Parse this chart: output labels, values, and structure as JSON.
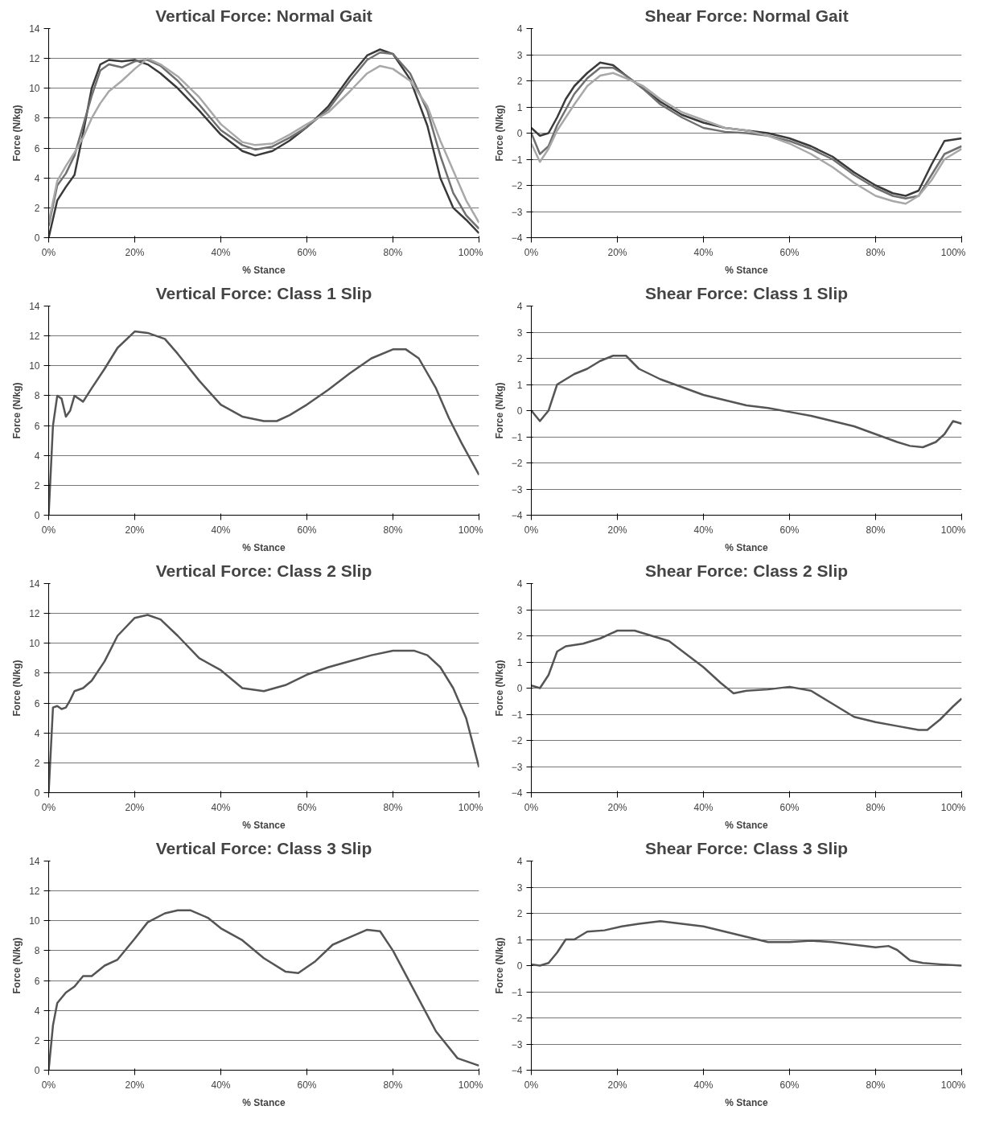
{
  "chart_data": [
    {
      "type": "line",
      "title": "Vertical Force: Normal Gait",
      "xlabel": "% Stance",
      "ylabel": "Force (N/kg)",
      "xlim": [
        0,
        100
      ],
      "xticks": [
        {
          "value": 0,
          "label": "0%"
        },
        {
          "value": 20,
          "label": "20%"
        },
        {
          "value": 40,
          "label": "40%"
        },
        {
          "value": 60,
          "label": "60%"
        },
        {
          "value": 80,
          "label": "80%"
        },
        {
          "value": 100,
          "label": "100%"
        }
      ],
      "ylim": [
        0,
        14
      ],
      "yticks": [
        0,
        2,
        4,
        6,
        8,
        10,
        12,
        14
      ],
      "grid": "y",
      "series": [
        {
          "color": "#3a3a3a",
          "x": [
            0,
            2,
            4,
            6,
            8,
            10,
            12,
            14,
            17,
            20,
            23,
            26,
            30,
            35,
            40,
            45,
            48,
            52,
            56,
            60,
            65,
            70,
            74,
            77,
            80,
            84,
            88,
            91,
            94,
            97,
            100
          ],
          "values": [
            0,
            2.5,
            3.4,
            4.2,
            7,
            10,
            11.6,
            11.9,
            11.8,
            11.9,
            11.6,
            11,
            10,
            8.5,
            6.9,
            5.8,
            5.5,
            5.8,
            6.5,
            7.4,
            8.8,
            10.8,
            12.2,
            12.6,
            12.3,
            10.6,
            7.5,
            4,
            2,
            1.2,
            0.3
          ]
        },
        {
          "color": "#707070",
          "x": [
            0,
            2,
            4,
            6,
            8,
            10,
            12,
            14,
            17,
            20,
            23,
            26,
            30,
            35,
            40,
            45,
            48,
            52,
            56,
            60,
            65,
            70,
            74,
            77,
            80,
            84,
            88,
            91,
            94,
            97,
            100
          ],
          "values": [
            0.8,
            3.5,
            4.3,
            5.5,
            7.5,
            9.5,
            11.2,
            11.6,
            11.4,
            11.8,
            11.9,
            11.5,
            10.5,
            8.9,
            7.2,
            6.2,
            5.9,
            6.1,
            6.7,
            7.4,
            8.6,
            10.5,
            11.9,
            12.4,
            12.3,
            11,
            8.5,
            5.5,
            3,
            1.5,
            0.6
          ]
        },
        {
          "color": "#a8a8a8",
          "x": [
            0,
            2,
            4,
            6,
            8,
            10,
            12,
            14,
            17,
            20,
            23,
            26,
            30,
            35,
            40,
            45,
            48,
            52,
            56,
            60,
            65,
            70,
            74,
            77,
            80,
            84,
            88,
            91,
            94,
            97,
            100
          ],
          "values": [
            1,
            3.8,
            4.8,
            5.7,
            6.7,
            8,
            9,
            9.8,
            10.5,
            11.3,
            12,
            11.6,
            10.8,
            9.4,
            7.6,
            6.4,
            6.2,
            6.3,
            6.9,
            7.6,
            8.4,
            9.8,
            11,
            11.5,
            11.3,
            10.5,
            8.8,
            6.5,
            4.5,
            2.5,
            1
          ]
        }
      ]
    },
    {
      "type": "line",
      "title": "Shear Force: Normal Gait",
      "xlabel": "% Stance",
      "ylabel": "Force (N/kg)",
      "xlim": [
        0,
        100
      ],
      "xticks": [
        {
          "value": 0,
          "label": "0%"
        },
        {
          "value": 20,
          "label": "20%"
        },
        {
          "value": 40,
          "label": "40%"
        },
        {
          "value": 60,
          "label": "60%"
        },
        {
          "value": 80,
          "label": "80%"
        },
        {
          "value": 100,
          "label": "100%"
        }
      ],
      "ylim": [
        -4,
        4
      ],
      "yticks": [
        -4,
        -3,
        -2,
        -1,
        0,
        1,
        2,
        3,
        4
      ],
      "grid": "y",
      "series": [
        {
          "color": "#3a3a3a",
          "x": [
            0,
            2,
            4,
            6,
            8,
            10,
            13,
            16,
            19,
            22,
            26,
            30,
            35,
            40,
            45,
            50,
            55,
            60,
            65,
            70,
            75,
            80,
            84,
            87,
            90,
            93,
            96,
            100
          ],
          "values": [
            0.2,
            -0.1,
            0,
            0.6,
            1.3,
            1.8,
            2.3,
            2.7,
            2.6,
            2.2,
            1.7,
            1.2,
            0.7,
            0.4,
            0.2,
            0.1,
            0,
            -0.2,
            -0.5,
            -0.9,
            -1.5,
            -2,
            -2.3,
            -2.4,
            -2.2,
            -1.2,
            -0.3,
            -0.2
          ]
        },
        {
          "color": "#707070",
          "x": [
            0,
            2,
            4,
            6,
            8,
            10,
            13,
            16,
            19,
            22,
            26,
            30,
            35,
            40,
            45,
            50,
            55,
            60,
            65,
            70,
            75,
            80,
            84,
            87,
            90,
            93,
            96,
            100
          ],
          "values": [
            0,
            -0.8,
            -0.5,
            0.3,
            0.9,
            1.5,
            2.1,
            2.5,
            2.5,
            2.2,
            1.7,
            1.1,
            0.6,
            0.2,
            0.05,
            0,
            -0.1,
            -0.3,
            -0.6,
            -1,
            -1.6,
            -2.1,
            -2.4,
            -2.5,
            -2.4,
            -1.6,
            -0.8,
            -0.5
          ]
        },
        {
          "color": "#a8a8a8",
          "x": [
            0,
            2,
            4,
            6,
            8,
            10,
            13,
            16,
            19,
            22,
            26,
            30,
            35,
            40,
            45,
            50,
            55,
            60,
            65,
            70,
            75,
            80,
            84,
            87,
            90,
            93,
            96,
            100
          ],
          "values": [
            -0.4,
            -1.1,
            -0.6,
            0.1,
            0.6,
            1.1,
            1.8,
            2.2,
            2.3,
            2.1,
            1.8,
            1.3,
            0.8,
            0.5,
            0.2,
            0.1,
            -0.1,
            -0.4,
            -0.8,
            -1.3,
            -1.9,
            -2.4,
            -2.6,
            -2.7,
            -2.4,
            -1.8,
            -1,
            -0.6
          ]
        }
      ]
    },
    {
      "type": "line",
      "title": "Vertical Force: Class 1 Slip",
      "xlabel": "% Stance",
      "ylabel": "Force (N/kg)",
      "xlim": [
        0,
        100
      ],
      "xticks": [
        {
          "value": 0,
          "label": "0%"
        },
        {
          "value": 20,
          "label": "20%"
        },
        {
          "value": 40,
          "label": "40%"
        },
        {
          "value": 60,
          "label": "60%"
        },
        {
          "value": 80,
          "label": "80%"
        },
        {
          "value": 100,
          "label": "100%"
        }
      ],
      "ylim": [
        0,
        14
      ],
      "yticks": [
        0,
        2,
        4,
        6,
        8,
        10,
        12,
        14
      ],
      "grid": "y",
      "series": [
        {
          "color": "#555555",
          "x": [
            0,
            1,
            2,
            3,
            4,
            5,
            6,
            8,
            10,
            13,
            16,
            20,
            23,
            27,
            30,
            35,
            40,
            45,
            50,
            53,
            56,
            60,
            65,
            70,
            75,
            80,
            83,
            86,
            90,
            93,
            96,
            100
          ],
          "values": [
            0,
            6,
            8,
            7.8,
            6.6,
            7,
            8,
            7.6,
            8.5,
            9.8,
            11.2,
            12.3,
            12.2,
            11.8,
            10.8,
            9,
            7.4,
            6.6,
            6.3,
            6.3,
            6.7,
            7.4,
            8.4,
            9.5,
            10.5,
            11.1,
            11.1,
            10.5,
            8.5,
            6.5,
            4.8,
            2.7
          ]
        }
      ]
    },
    {
      "type": "line",
      "title": "Shear Force: Class 1 Slip",
      "xlabel": "% Stance",
      "ylabel": "Force (N/kg)",
      "xlim": [
        0,
        100
      ],
      "xticks": [
        {
          "value": 0,
          "label": "0%"
        },
        {
          "value": 20,
          "label": "20%"
        },
        {
          "value": 40,
          "label": "40%"
        },
        {
          "value": 60,
          "label": "60%"
        },
        {
          "value": 80,
          "label": "80%"
        },
        {
          "value": 100,
          "label": "100%"
        }
      ],
      "ylim": [
        -4,
        4
      ],
      "yticks": [
        -4,
        -3,
        -2,
        -1,
        0,
        1,
        2,
        3,
        4
      ],
      "grid": "y",
      "series": [
        {
          "color": "#555555",
          "x": [
            0,
            2,
            4,
            6,
            8,
            10,
            13,
            16,
            19,
            22,
            25,
            30,
            35,
            40,
            45,
            50,
            55,
            60,
            65,
            70,
            75,
            80,
            85,
            88,
            91,
            94,
            96,
            98,
            100
          ],
          "values": [
            0,
            -0.4,
            0,
            1,
            1.2,
            1.4,
            1.6,
            1.9,
            2.1,
            2.1,
            1.6,
            1.2,
            0.9,
            0.6,
            0.4,
            0.2,
            0.1,
            -0.05,
            -0.2,
            -0.4,
            -0.6,
            -0.9,
            -1.2,
            -1.35,
            -1.4,
            -1.2,
            -0.9,
            -0.4,
            -0.5
          ]
        }
      ]
    },
    {
      "type": "line",
      "title": "Vertical Force: Class 2 Slip",
      "xlabel": "% Stance",
      "ylabel": "Force (N/kg)",
      "xlim": [
        0,
        100
      ],
      "xticks": [
        {
          "value": 0,
          "label": "0%"
        },
        {
          "value": 20,
          "label": "20%"
        },
        {
          "value": 40,
          "label": "40%"
        },
        {
          "value": 60,
          "label": "60%"
        },
        {
          "value": 80,
          "label": "80%"
        },
        {
          "value": 100,
          "label": "100%"
        }
      ],
      "ylim": [
        0,
        14
      ],
      "yticks": [
        0,
        2,
        4,
        6,
        8,
        10,
        12,
        14
      ],
      "grid": "y",
      "series": [
        {
          "color": "#555555",
          "x": [
            0,
            1,
            2,
            3,
            4,
            5,
            6,
            8,
            10,
            13,
            16,
            20,
            23,
            26,
            30,
            35,
            40,
            45,
            50,
            55,
            60,
            65,
            70,
            75,
            80,
            85,
            88,
            91,
            94,
            97,
            100
          ],
          "values": [
            0,
            5.7,
            5.8,
            5.6,
            5.7,
            6.2,
            6.8,
            7,
            7.5,
            8.8,
            10.5,
            11.7,
            11.9,
            11.6,
            10.5,
            9,
            8.2,
            7,
            6.8,
            7.2,
            7.9,
            8.4,
            8.8,
            9.2,
            9.5,
            9.5,
            9.2,
            8.4,
            7,
            5,
            1.7
          ]
        }
      ]
    },
    {
      "type": "line",
      "title": "Shear Force: Class 2 Slip",
      "xlabel": "% Stance",
      "ylabel": "Force (N/kg)",
      "xlim": [
        0,
        100
      ],
      "xticks": [
        {
          "value": 0,
          "label": "0%"
        },
        {
          "value": 20,
          "label": "20%"
        },
        {
          "value": 40,
          "label": "40%"
        },
        {
          "value": 60,
          "label": "60%"
        },
        {
          "value": 80,
          "label": "80%"
        },
        {
          "value": 100,
          "label": "100%"
        }
      ],
      "ylim": [
        -4,
        4
      ],
      "yticks": [
        -4,
        -3,
        -2,
        -1,
        0,
        1,
        2,
        3,
        4
      ],
      "grid": "y",
      "series": [
        {
          "color": "#555555",
          "x": [
            0,
            2,
            4,
            6,
            8,
            12,
            16,
            20,
            24,
            28,
            32,
            36,
            40,
            44,
            47,
            50,
            55,
            60,
            65,
            70,
            75,
            80,
            85,
            90,
            92,
            95,
            98,
            100
          ],
          "values": [
            0.1,
            0,
            0.5,
            1.4,
            1.6,
            1.7,
            1.9,
            2.2,
            2.2,
            2,
            1.8,
            1.3,
            0.8,
            0.2,
            -0.2,
            -0.1,
            -0.05,
            0.05,
            -0.1,
            -0.6,
            -1.1,
            -1.3,
            -1.45,
            -1.6,
            -1.6,
            -1.2,
            -0.7,
            -0.4
          ]
        }
      ]
    },
    {
      "type": "line",
      "title": "Vertical Force: Class 3 Slip",
      "xlabel": "% Stance",
      "ylabel": "Force (N/kg)",
      "xlim": [
        0,
        100
      ],
      "xticks": [
        {
          "value": 0,
          "label": "0%"
        },
        {
          "value": 20,
          "label": "20%"
        },
        {
          "value": 40,
          "label": "40%"
        },
        {
          "value": 60,
          "label": "60%"
        },
        {
          "value": 80,
          "label": "80%"
        },
        {
          "value": 100,
          "label": "100%"
        }
      ],
      "ylim": [
        0,
        14
      ],
      "yticks": [
        0,
        2,
        4,
        6,
        8,
        10,
        12,
        14
      ],
      "grid": "y",
      "series": [
        {
          "color": "#555555",
          "x": [
            0,
            1,
            2,
            4,
            6,
            8,
            10,
            13,
            16,
            20,
            23,
            27,
            30,
            33,
            37,
            40,
            45,
            50,
            55,
            58,
            62,
            66,
            70,
            74,
            77,
            80,
            85,
            90,
            95,
            100
          ],
          "values": [
            0,
            3,
            4.5,
            5.2,
            5.6,
            6.3,
            6.3,
            7,
            7.4,
            8.8,
            9.9,
            10.5,
            10.7,
            10.7,
            10.2,
            9.5,
            8.7,
            7.5,
            6.6,
            6.5,
            7.3,
            8.4,
            8.9,
            9.4,
            9.3,
            8,
            5.3,
            2.6,
            0.8,
            0.3
          ]
        }
      ]
    },
    {
      "type": "line",
      "title": "Shear Force: Class 3 Slip",
      "xlabel": "% Stance",
      "ylabel": "Force (N/kg)",
      "xlim": [
        0,
        100
      ],
      "xticks": [
        {
          "value": 0,
          "label": "0%"
        },
        {
          "value": 20,
          "label": "20%"
        },
        {
          "value": 40,
          "label": "40%"
        },
        {
          "value": 60,
          "label": "60%"
        },
        {
          "value": 80,
          "label": "80%"
        },
        {
          "value": 100,
          "label": "100%"
        }
      ],
      "ylim": [
        -4,
        4
      ],
      "yticks": [
        -4,
        -3,
        -2,
        -1,
        0,
        1,
        2,
        3,
        4
      ],
      "grid": "y",
      "series": [
        {
          "color": "#555555",
          "x": [
            0,
            2,
            4,
            6,
            8,
            10,
            13,
            17,
            21,
            25,
            30,
            35,
            40,
            45,
            50,
            55,
            60,
            65,
            70,
            75,
            80,
            83,
            85,
            88,
            91,
            95,
            100
          ],
          "values": [
            0.05,
            0,
            0.1,
            0.5,
            1,
            1,
            1.3,
            1.35,
            1.5,
            1.6,
            1.7,
            1.6,
            1.5,
            1.3,
            1.1,
            0.9,
            0.9,
            0.95,
            0.9,
            0.8,
            0.7,
            0.75,
            0.6,
            0.2,
            0.1,
            0.05,
            0
          ]
        }
      ]
    }
  ]
}
